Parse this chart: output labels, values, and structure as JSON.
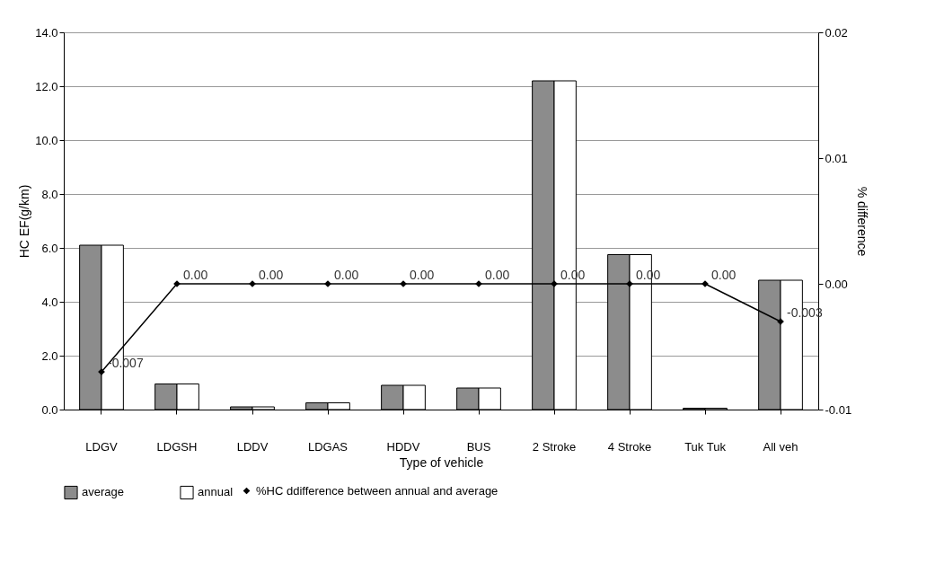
{
  "chart_data": {
    "type": "bar",
    "xlabel": "Type of vehicle",
    "ylabel": "HC EF(g/km)",
    "y2label": "% difference",
    "categories": [
      "LDGV",
      "LDGSH",
      "LDDV",
      "LDGAS",
      "HDDV",
      "BUS",
      "2 Stroke",
      "4 Stroke",
      "Tuk Tuk",
      "All veh"
    ],
    "series": [
      {
        "name": "average",
        "color": "#8c8c8c",
        "values": [
          6.1,
          0.95,
          0.1,
          0.25,
          0.9,
          0.8,
          12.2,
          5.75,
          0.05,
          4.8
        ]
      },
      {
        "name": "annual",
        "color": "#ffffff",
        "values": [
          6.1,
          0.95,
          0.1,
          0.25,
          0.9,
          0.8,
          12.2,
          5.75,
          0.05,
          4.8
        ]
      },
      {
        "name": "%HC ddifference between annual and   average",
        "type": "line",
        "axis": "y2",
        "color": "#000000",
        "marker": "diamond",
        "values": [
          -0.007,
          0,
          0,
          0,
          0,
          0,
          0,
          0,
          0,
          -0.003
        ],
        "value_labels": [
          "-0.007",
          "0.00",
          "0.00",
          "0.00",
          "0.00",
          "0.00",
          "0.00",
          "0.00",
          "0.00",
          "-0.003"
        ]
      }
    ],
    "ylim": [
      0,
      14
    ],
    "yticks": [
      {
        "value": 0,
        "label": "0.0"
      },
      {
        "value": 2,
        "label": "2.0"
      },
      {
        "value": 4,
        "label": "4.0"
      },
      {
        "value": 6,
        "label": "6.0"
      },
      {
        "value": 8,
        "label": "8.0"
      },
      {
        "value": 10,
        "label": "10.0"
      },
      {
        "value": 12,
        "label": "12.0"
      },
      {
        "value": 14,
        "label": "14.0"
      }
    ],
    "y2lim": [
      -0.01,
      0.02
    ],
    "y2ticks": [
      -0.01,
      {
        "value": 0,
        "label": "0.00"
      },
      0.01,
      0.02
    ],
    "grid": "y",
    "legend": "bottom"
  }
}
